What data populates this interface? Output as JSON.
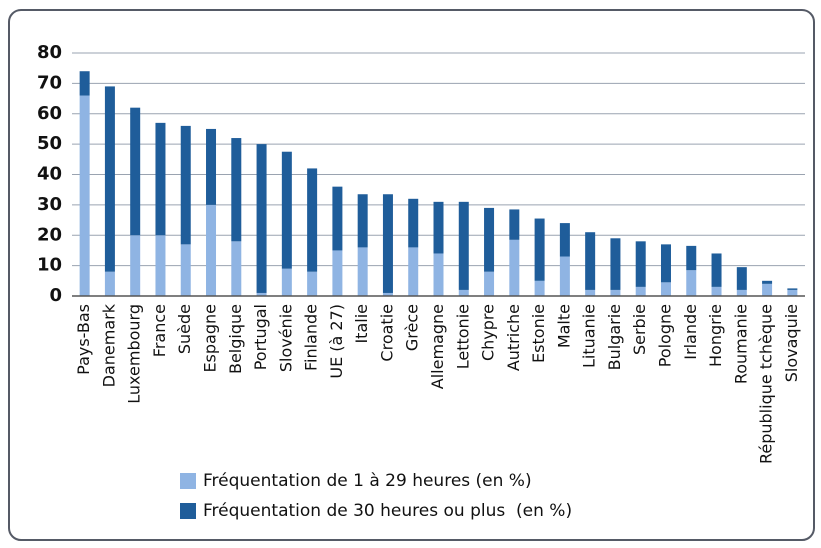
{
  "chart_data": {
    "type": "bar",
    "stacked": true,
    "categories": [
      "Pays-Bas",
      "Danemark",
      "Luxembourg",
      "France",
      "Suède",
      "Espagne",
      "Belgique",
      "Portugal",
      "Slovénie",
      "Finlande",
      "UE (à 27)",
      "Italie",
      "Croatie",
      "Grèce",
      "Allemagne",
      "Lettonie",
      "Chypre",
      "Autriche",
      "Estonie",
      "Malte",
      "Lituanie",
      "Bulgarie",
      "Serbie",
      "Pologne",
      "Irlande",
      "Hongrie",
      "Roumanie",
      "République tchèque",
      "Slovaquie"
    ],
    "series": [
      {
        "name": "Fréquentation de 1 à 29 heures (en %)",
        "color": "#8fb4e3",
        "values": [
          66,
          8,
          20,
          20,
          17,
          30,
          18,
          1,
          9,
          8,
          15,
          16,
          1,
          16,
          14,
          2,
          8,
          18.5,
          5,
          13,
          2,
          2,
          3,
          4.5,
          8.5,
          3,
          2,
          4,
          2
        ]
      },
      {
        "name": "Fréquentation de 30 heures ou plus  (en %)",
        "color": "#1f5d9a",
        "values": [
          8,
          61,
          42,
          37,
          39,
          25,
          34,
          49,
          38.5,
          34,
          21,
          17.5,
          32.5,
          16,
          17,
          29,
          21,
          10,
          20.5,
          11,
          19,
          17,
          15,
          12.5,
          8,
          11,
          7.5,
          1,
          0.5
        ]
      }
    ],
    "ylim": [
      0,
      80
    ],
    "yticks": [
      0,
      10,
      20,
      30,
      40,
      50,
      60,
      70,
      80
    ],
    "grid": true
  }
}
